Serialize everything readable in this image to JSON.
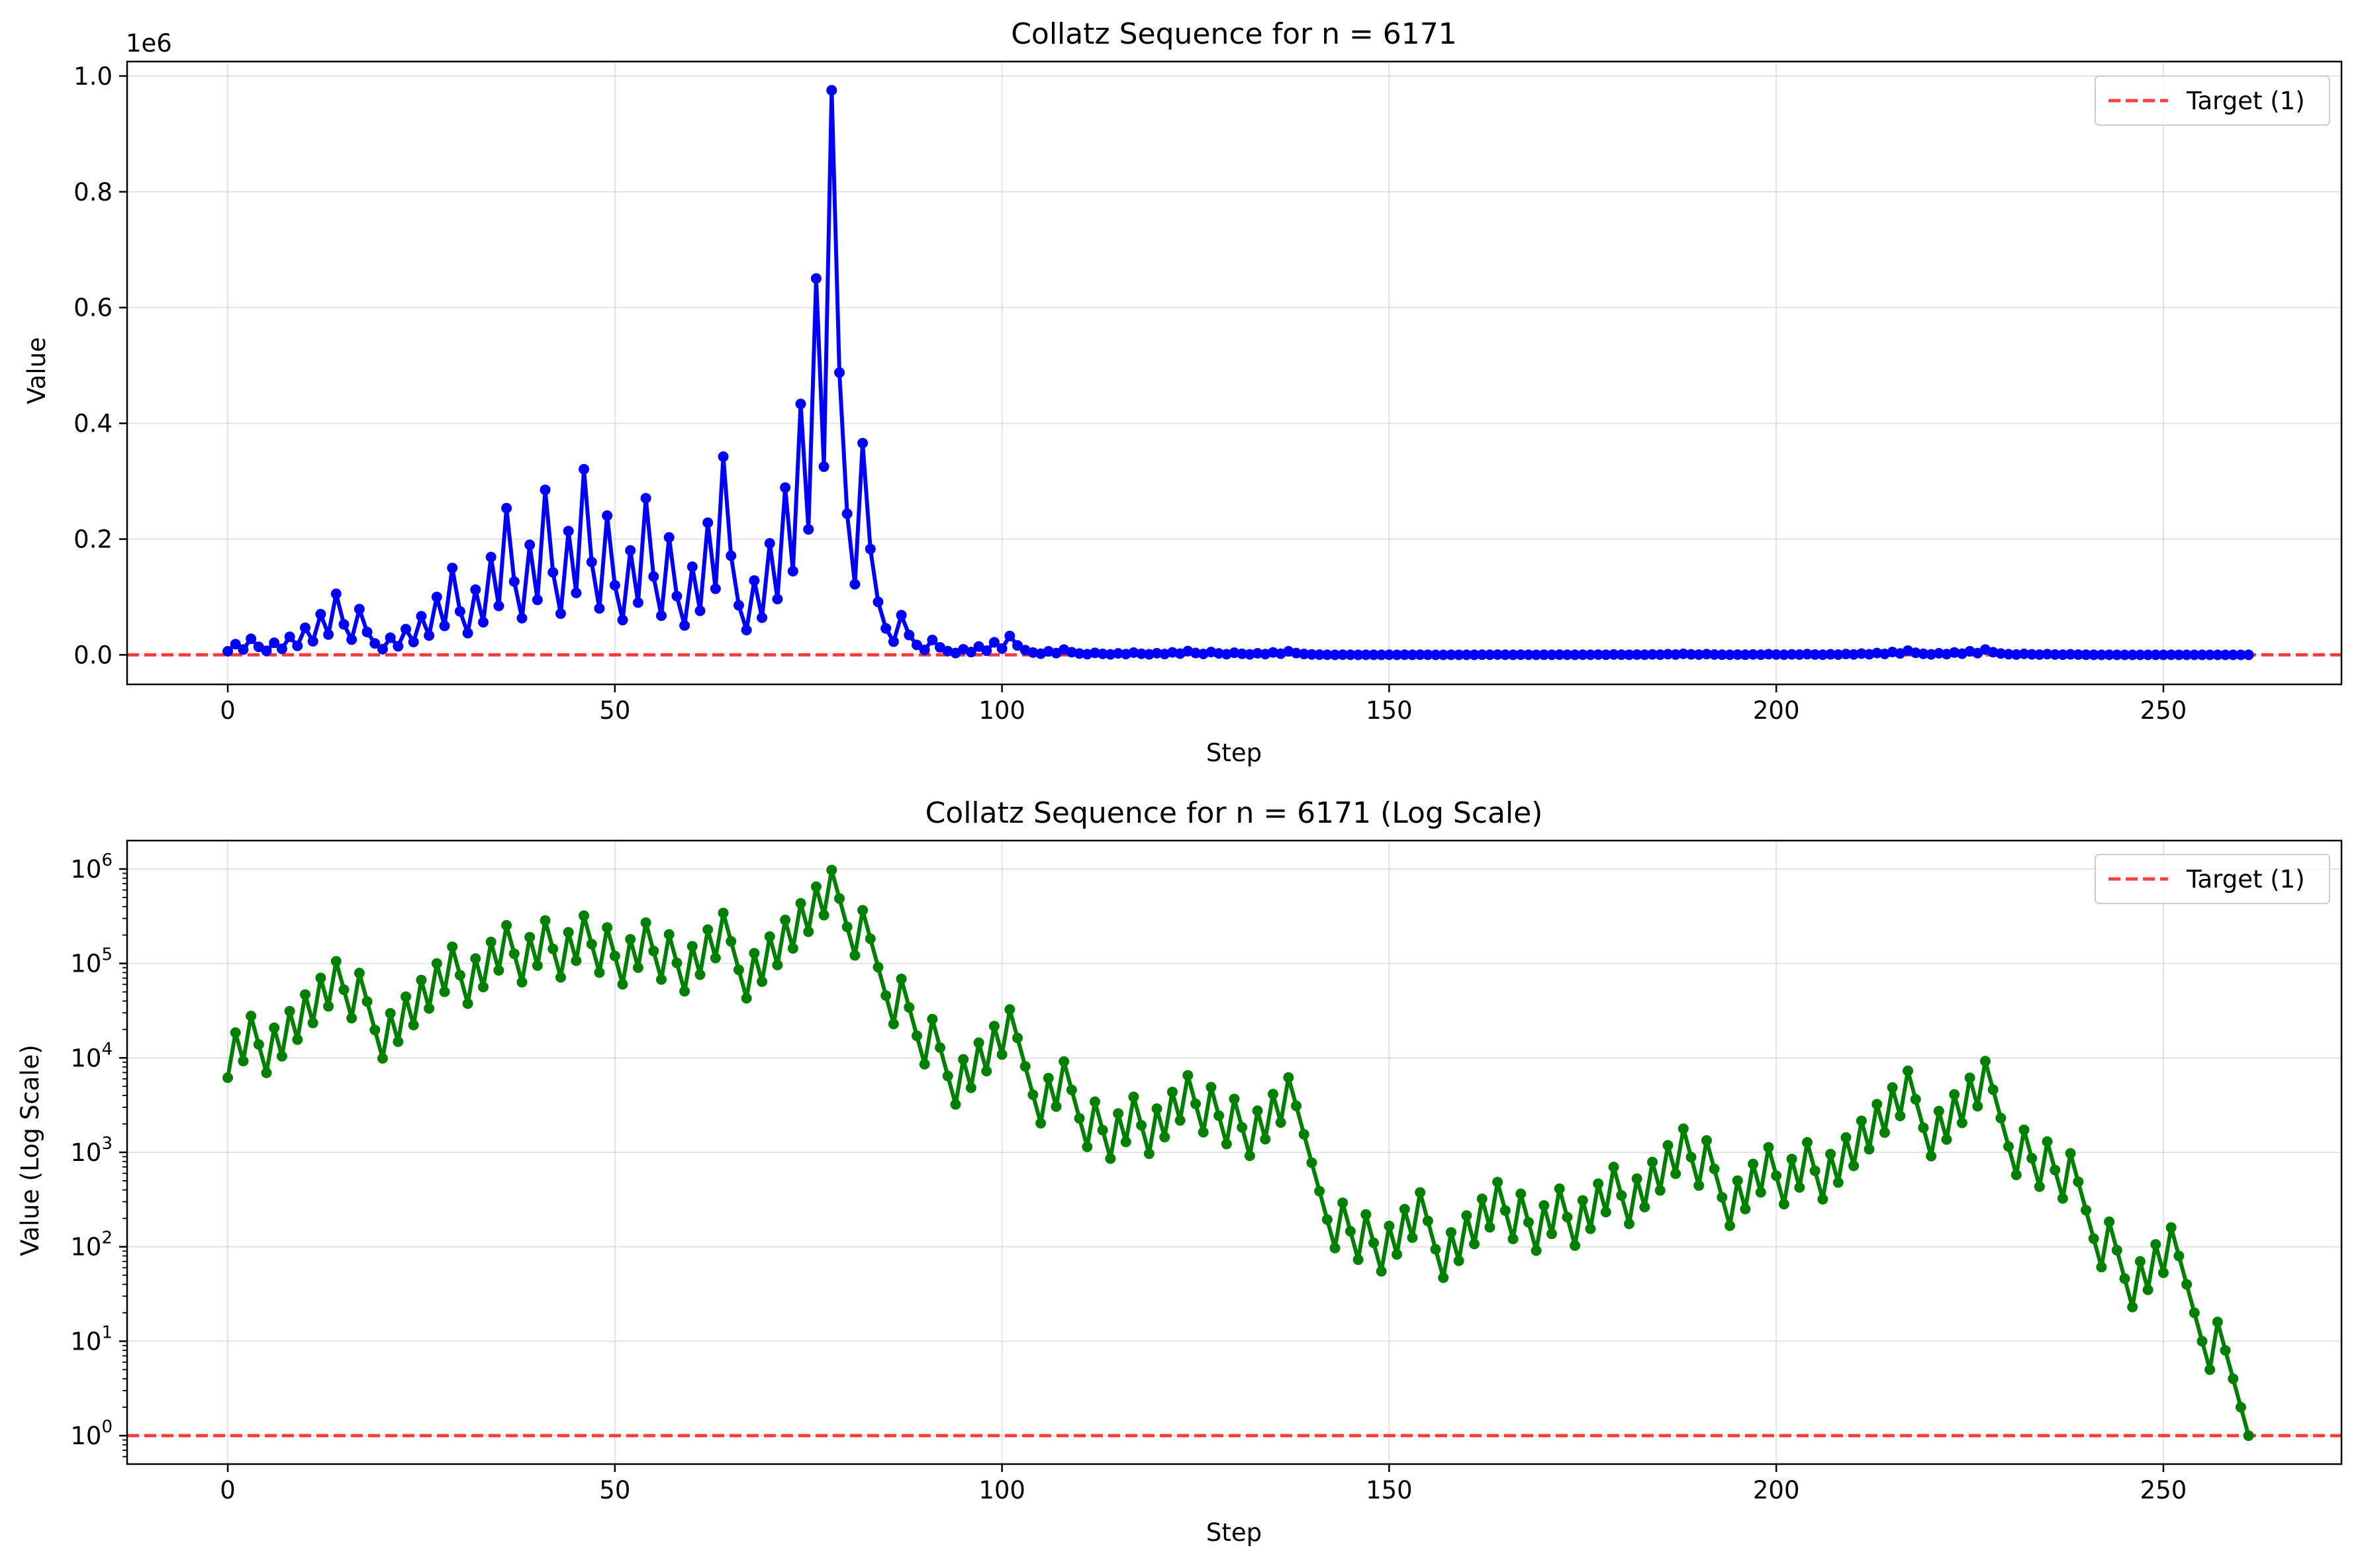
{
  "chart_data": [
    {
      "type": "line",
      "title": "Collatz Sequence for n = 6171",
      "xlabel": "Step",
      "ylabel": "Value",
      "y_offset_label": "1e6",
      "yscale": "linear",
      "xlim": [
        -13,
        273
      ],
      "ylim": [
        -51000,
        1025000
      ],
      "xticks": [
        0,
        50,
        100,
        150,
        200,
        250
      ],
      "yticks": [
        0,
        200000,
        400000,
        600000,
        800000,
        1000000
      ],
      "ytick_labels": [
        "0.0",
        "0.2",
        "0.4",
        "0.6",
        "0.8",
        "1.0"
      ],
      "grid": true,
      "legend_position": "top-right",
      "series": [
        {
          "name": "",
          "color": "#0000ff",
          "source": "collatz",
          "start": 6171,
          "marker": "circle"
        },
        {
          "name": "Target (1)",
          "color": "#ff0000",
          "style": "dashed",
          "constant": 1
        }
      ]
    },
    {
      "type": "line",
      "title": "Collatz Sequence for n = 6171 (Log Scale)",
      "xlabel": "Step",
      "ylabel": "Value (Log Scale)",
      "yscale": "log",
      "xlim": [
        -13,
        273
      ],
      "ylim": [
        0.5,
        2000000
      ],
      "xticks": [
        0,
        50,
        100,
        150,
        200,
        250
      ],
      "ytick_exponents": [
        "0",
        "1",
        "2",
        "3",
        "4",
        "5",
        "6"
      ],
      "ytick_base": "10",
      "grid": true,
      "legend_position": "top-right",
      "series": [
        {
          "name": "",
          "color": "#008000",
          "source": "collatz",
          "start": 6171,
          "marker": "circle"
        },
        {
          "name": "Target (1)",
          "color": "#ff0000",
          "style": "dashed",
          "constant": 1
        }
      ]
    }
  ]
}
